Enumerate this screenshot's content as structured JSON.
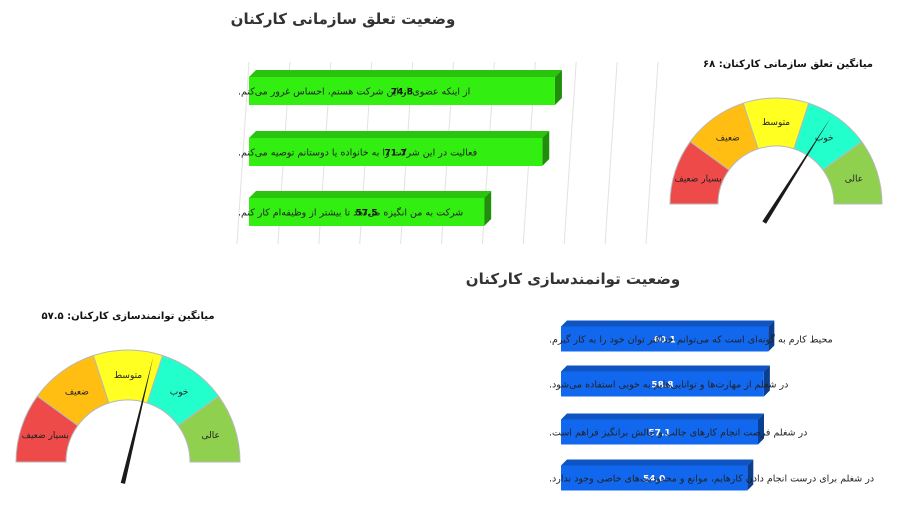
{
  "chart_data": [
    {
      "type": "bar",
      "orientation": "horizontal",
      "title": "وضعیت تعلق سازمانی کارکنان",
      "categories": [
        "از اینکه عضوی از این شرکت هستم، احساس غرور می‌کنم.",
        "فعالیت در این شرکت را به خانواده یا دوستانم توصیه می‌کنم.",
        "شرکت به من انگیزه می‌دهد تا بیشتر از وظیفه‌ام کار کنم."
      ],
      "values": [
        74.8,
        71.7,
        57.5
      ],
      "value_labels": [
        "74.8",
        "71.7",
        "57.5"
      ],
      "xlim": [
        0,
        100
      ],
      "color": "#33ee11",
      "grid": true
    },
    {
      "type": "gauge",
      "title": "میانگین تعلق سازمانی کارکنان: ۶۸",
      "value": 68,
      "range": [
        0,
        100
      ],
      "segments": [
        {
          "label": "بسیار ضعیف",
          "color": "#ee4a4a"
        },
        {
          "label": "ضعیف",
          "color": "#ffbe11"
        },
        {
          "label": "متوسط",
          "color": "#ffff22"
        },
        {
          "label": "خوب",
          "color": "#22ffcc"
        },
        {
          "label": "عالی",
          "color": "#8fd14f"
        }
      ]
    },
    {
      "type": "bar",
      "orientation": "horizontal",
      "title": "وضعیت توانمندسازی کارکنان",
      "categories": [
        "محیط کارم به گونه‌ای است که می‌توانم حداکثر توان خود را به کار گیرم.",
        "در شغلم از مهارت‌ها و توانایی‌هایم به خوبی استفاده می‌شود.",
        "در شغلم فرصت انجام کارهای جالب و چالش برانگیز فراهم است.",
        "در شغلم برای درست انجام دادن کارهایم، موانع و محدودیت‌های خاصی وجود ندارد."
      ],
      "values": [
        60.1,
        58.8,
        57.1,
        54.0
      ],
      "value_labels": [
        "60.1",
        "58.8",
        "57.1",
        "54.0"
      ],
      "xlim": [
        0,
        100
      ],
      "color": "#1168ee"
    },
    {
      "type": "gauge",
      "title": "میانگین توانمندسازی کارکنان: ۵۷.۵",
      "value": 57.5,
      "range": [
        0,
        100
      ],
      "segments": [
        {
          "label": "بسیار ضعیف",
          "color": "#ee4a4a"
        },
        {
          "label": "ضعیف",
          "color": "#ffbe11"
        },
        {
          "label": "متوسط",
          "color": "#ffff22"
        },
        {
          "label": "خوب",
          "color": "#22ffcc"
        },
        {
          "label": "عالی",
          "color": "#8fd14f"
        }
      ]
    }
  ]
}
